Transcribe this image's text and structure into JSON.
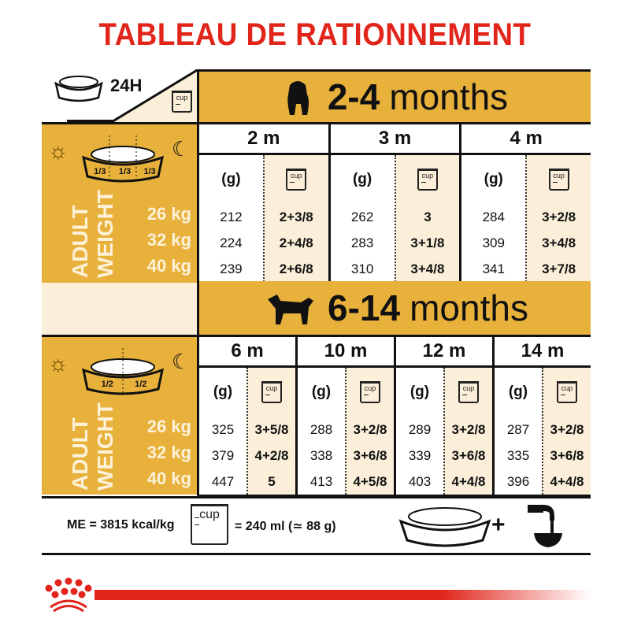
{
  "title": "TABLEAU DE RATIONNEMENT",
  "header_24h": "24H",
  "cup_label": "cup",
  "colors": {
    "title": "#e1251b",
    "gold": "#e8b13c",
    "cream": "#fbefd9"
  },
  "adult_weight_label": [
    "ADULT",
    "WEIGHT"
  ],
  "weights": [
    "26 kg",
    "32 kg",
    "40 kg"
  ],
  "section1": {
    "age_number": "2-4",
    "age_unit": "months",
    "split": "1/3",
    "grams_header": "(g)",
    "ages": [
      {
        "label": "2 m",
        "grams": [
          "212",
          "224",
          "239"
        ],
        "cups": [
          "2+3/8",
          "2+4/8",
          "2+6/8"
        ]
      },
      {
        "label": "3 m",
        "grams": [
          "262",
          "283",
          "310"
        ],
        "cups": [
          "3",
          "3+1/8",
          "3+4/8"
        ]
      },
      {
        "label": "4 m",
        "grams": [
          "284",
          "309",
          "341"
        ],
        "cups": [
          "3+2/8",
          "3+4/8",
          "3+7/8"
        ]
      }
    ]
  },
  "section2": {
    "age_number": "6-14",
    "age_unit": "months",
    "split": "1/2",
    "grams_header": "(g)",
    "ages": [
      {
        "label": "6 m",
        "grams": [
          "325",
          "379",
          "447"
        ],
        "cups": [
          "3+5/8",
          "4+2/8",
          "5"
        ]
      },
      {
        "label": "10 m",
        "grams": [
          "288",
          "338",
          "413"
        ],
        "cups": [
          "3+2/8",
          "3+6/8",
          "4+5/8"
        ]
      },
      {
        "label": "12 m",
        "grams": [
          "289",
          "339",
          "403"
        ],
        "cups": [
          "3+2/8",
          "3+6/8",
          "4+4/8"
        ]
      },
      {
        "label": "14 m",
        "grams": [
          "287",
          "335",
          "396"
        ],
        "cups": [
          "3+2/8",
          "3+6/8",
          "4+4/8"
        ]
      }
    ]
  },
  "footer": {
    "energy": "ME = 3815 kcal/kg",
    "cup_equivalence": "= 240 ml (≃ 88 g)",
    "plus": "+"
  },
  "icons": [
    "bowl-icon",
    "clock-icon",
    "cup-icon",
    "puppy-icon",
    "dog-icon",
    "sun-icon",
    "moon-icon",
    "water-tap-icon",
    "royal-canin-crown-logo"
  ]
}
